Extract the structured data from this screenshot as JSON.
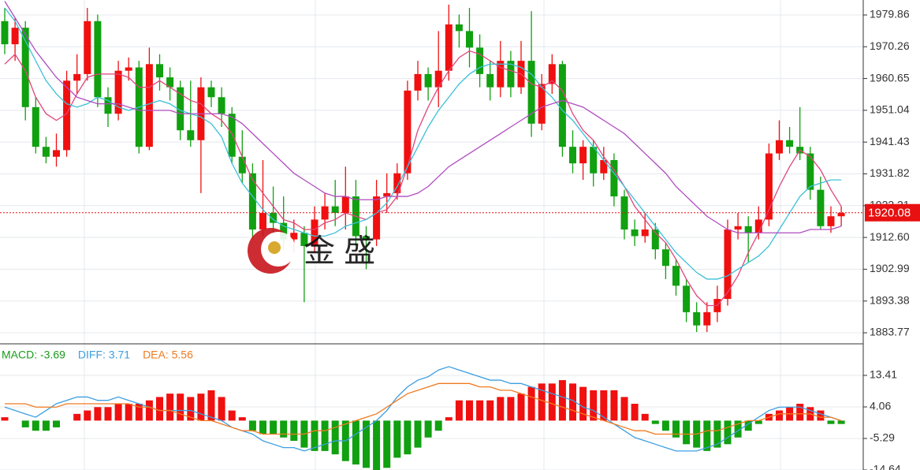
{
  "chart_data": [
    {
      "type": "candlestick",
      "up_color": "#f01010",
      "down_color": "#10a010",
      "candles": [
        [
          1978,
          1982,
          1968,
          1971
        ],
        [
          1971,
          1979,
          1966,
          1976
        ],
        [
          1976,
          1978,
          1948,
          1952
        ],
        [
          1952,
          1955,
          1938,
          1940
        ],
        [
          1940,
          1943,
          1935,
          1937
        ],
        [
          1937,
          1944,
          1934,
          1939
        ],
        [
          1939,
          1963,
          1937,
          1960
        ],
        [
          1960,
          1968,
          1956,
          1962
        ],
        [
          1962,
          1982,
          1960,
          1978
        ],
        [
          1978,
          1980,
          1952,
          1955
        ],
        [
          1955,
          1958,
          1946,
          1950
        ],
        [
          1950,
          1966,
          1948,
          1963
        ],
        [
          1963,
          1967,
          1960,
          1964
        ],
        [
          1964,
          1966,
          1938,
          1940
        ],
        [
          1940,
          1970,
          1939,
          1965
        ],
        [
          1965,
          1968,
          1957,
          1961
        ],
        [
          1961,
          1964,
          1954,
          1958
        ],
        [
          1958,
          1960,
          1942,
          1945
        ],
        [
          1945,
          1960,
          1940,
          1942
        ],
        [
          1942,
          1961,
          1926,
          1958
        ],
        [
          1958,
          1960,
          1952,
          1955
        ],
        [
          1955,
          1958,
          1946,
          1950
        ],
        [
          1950,
          1952,
          1935,
          1937
        ],
        [
          1937,
          1945,
          1929,
          1932
        ],
        [
          1932,
          1935,
          1912,
          1915
        ],
        [
          1915,
          1936,
          1913,
          1920
        ],
        [
          1920,
          1928,
          1914,
          1917
        ],
        [
          1917,
          1925,
          1909,
          1912
        ],
        [
          1912,
          1918,
          1908,
          1914
        ],
        [
          1914,
          1916,
          1893,
          1910
        ],
        [
          1910,
          1922,
          1908,
          1918
        ],
        [
          1918,
          1926,
          1915,
          1922
        ],
        [
          1922,
          1930,
          1916,
          1920
        ],
        [
          1920,
          1934,
          1915,
          1925
        ],
        [
          1925,
          1930,
          1910,
          1913
        ],
        [
          1913,
          1916,
          1903,
          1912
        ],
        [
          1912,
          1930,
          1910,
          1925
        ],
        [
          1925,
          1932,
          1920,
          1926
        ],
        [
          1926,
          1935,
          1924,
          1932
        ],
        [
          1932,
          1960,
          1930,
          1957
        ],
        [
          1957,
          1966,
          1954,
          1962
        ],
        [
          1962,
          1964,
          1954,
          1958
        ],
        [
          1958,
          1975,
          1952,
          1963
        ],
        [
          1963,
          1983,
          1960,
          1977
        ],
        [
          1977,
          1980,
          1970,
          1975
        ],
        [
          1975,
          1982,
          1964,
          1970
        ],
        [
          1970,
          1974,
          1958,
          1962
        ],
        [
          1962,
          1966,
          1954,
          1958
        ],
        [
          1958,
          1972,
          1955,
          1966
        ],
        [
          1966,
          1969,
          1955,
          1958
        ],
        [
          1958,
          1972,
          1956,
          1966
        ],
        [
          1966,
          1981,
          1943,
          1947
        ],
        [
          1947,
          1962,
          1945,
          1959
        ],
        [
          1959,
          1968,
          1956,
          1965
        ],
        [
          1965,
          1966,
          1937,
          1940
        ],
        [
          1940,
          1945,
          1932,
          1935
        ],
        [
          1935,
          1942,
          1930,
          1940
        ],
        [
          1940,
          1942,
          1928,
          1932
        ],
        [
          1932,
          1940,
          1930,
          1936
        ],
        [
          1936,
          1938,
          1922,
          1925
        ],
        [
          1925,
          1927,
          1912,
          1915
        ],
        [
          1915,
          1918,
          1910,
          1913
        ],
        [
          1913,
          1920,
          1911,
          1915
        ],
        [
          1915,
          1917,
          1906,
          1909
        ],
        [
          1909,
          1911,
          1900,
          1904
        ],
        [
          1904,
          1906,
          1895,
          1898
        ],
        [
          1898,
          1900,
          1887,
          1890
        ],
        [
          1890,
          1893,
          1884,
          1886
        ],
        [
          1886,
          1893,
          1884,
          1890
        ],
        [
          1890,
          1898,
          1887,
          1894
        ],
        [
          1894,
          1918,
          1892,
          1915
        ],
        [
          1915,
          1920,
          1912,
          1916
        ],
        [
          1916,
          1919,
          1905,
          1914
        ],
        [
          1914,
          1922,
          1912,
          1918
        ],
        [
          1918,
          1941,
          1916,
          1938
        ],
        [
          1938,
          1948,
          1936,
          1942
        ],
        [
          1942,
          1946,
          1938,
          1940
        ],
        [
          1940,
          1952,
          1936,
          1938
        ],
        [
          1938,
          1940,
          1924,
          1927
        ],
        [
          1927,
          1931,
          1915,
          1916
        ],
        [
          1916,
          1922,
          1914,
          1919
        ],
        [
          1919,
          1922,
          1916,
          1920
        ]
      ],
      "series": [
        {
          "color": "#e0457b",
          "values": [
            1965,
            1968,
            1963,
            1955,
            1950,
            1948,
            1950,
            1956,
            1961,
            1962,
            1962,
            1962,
            1961,
            1958,
            1958,
            1960,
            1958,
            1956,
            1954,
            1953,
            1950,
            1948,
            1944,
            1937,
            1930,
            1926,
            1922,
            1918,
            1917,
            1915,
            1915,
            1917,
            1918,
            1920,
            1919,
            1918,
            1920,
            1921,
            1925,
            1934,
            1945,
            1952,
            1958,
            1963,
            1967,
            1969,
            1968,
            1966,
            1964,
            1963,
            1962,
            1959,
            1958,
            1960,
            1957,
            1950,
            1945,
            1942,
            1937,
            1933,
            1928,
            1922,
            1918,
            1914,
            1911,
            1906,
            1900,
            1895,
            1892,
            1892,
            1896,
            1901,
            1908,
            1914,
            1921,
            1928,
            1934,
            1939,
            1937,
            1933,
            1927,
            1922
          ]
        },
        {
          "color": "#3cc0d8",
          "values": [
            1982,
            1978,
            1972,
            1966,
            1960,
            1956,
            1953,
            1952,
            1953,
            1955,
            1954,
            1952,
            1951,
            1952,
            1953,
            1954,
            1953,
            1951,
            1950,
            1949,
            1947,
            1943,
            1935,
            1929,
            1925,
            1921,
            1918,
            1916,
            1915,
            1914,
            1913,
            1913,
            1914,
            1916,
            1917,
            1918,
            1920,
            1923,
            1928,
            1934,
            1940,
            1946,
            1951,
            1955,
            1959,
            1962,
            1964,
            1965,
            1965,
            1965,
            1964,
            1962,
            1958,
            1955,
            1951,
            1948,
            1944,
            1940,
            1936,
            1932,
            1928,
            1924,
            1920,
            1916,
            1912,
            1908,
            1905,
            1902,
            1900,
            1900,
            1901,
            1903,
            1905,
            1907,
            1910,
            1915,
            1920,
            1925,
            1928,
            1929,
            1930,
            1930
          ]
        },
        {
          "color": "#b04cc0",
          "values": [
            1984,
            1979,
            1974,
            1969,
            1965,
            1961,
            1958,
            1955,
            1954,
            1953,
            1953,
            1953,
            1952,
            1951,
            1951,
            1951,
            1951,
            1950,
            1950,
            1950,
            1950,
            1950,
            1949,
            1947,
            1944,
            1941,
            1938,
            1935,
            1932,
            1930,
            1928,
            1926,
            1925,
            1925,
            1924,
            1924,
            1924,
            1925,
            1925,
            1925,
            1926,
            1928,
            1931,
            1934,
            1936,
            1938,
            1940,
            1942,
            1944,
            1946,
            1948,
            1950,
            1952,
            1953,
            1954,
            1953,
            1952,
            1950,
            1948,
            1946,
            1944,
            1941,
            1938,
            1935,
            1932,
            1928,
            1925,
            1922,
            1919,
            1917,
            1915,
            1914,
            1914,
            1914,
            1914,
            1914,
            1914,
            1914,
            1915,
            1915,
            1915,
            1916
          ]
        }
      ],
      "ylim": [
        1880.67,
        1984.39
      ],
      "yticks": [
        1979.86,
        1970.26,
        1960.65,
        1951.04,
        1941.43,
        1931.82,
        1922.21,
        {
          "value": 1912.6,
          "label": "1912.60"
        },
        1902.99,
        1893.38,
        1883.77
      ],
      "current_price": 1920.08,
      "current_color": "#e81010",
      "watermark": "金 盛",
      "grid": true
    },
    {
      "type": "macd",
      "legend": [
        {
          "text": "MACD: -3.69",
          "color": "#1a9a1a"
        },
        {
          "text": "DIFF: 3.71",
          "color": "#3c9ee0"
        },
        {
          "text": "DEA: 5.56",
          "color": "#f07a20"
        }
      ],
      "up_color": "#f01010",
      "down_color": "#10a010",
      "histogram": [
        1,
        0,
        -2,
        -3,
        -3,
        -2,
        0,
        2,
        3,
        4,
        4,
        5,
        5,
        5,
        6,
        7,
        8,
        8,
        7,
        8,
        9,
        7,
        3,
        1,
        -3,
        -4,
        -4,
        -5,
        -6,
        -8,
        -9,
        -9,
        -10,
        -12,
        -13,
        -14,
        -15,
        -14,
        -11,
        -10,
        -8,
        -5,
        -3,
        1,
        6,
        6,
        6,
        6,
        7,
        7,
        8,
        10,
        11,
        11,
        12,
        11,
        10,
        9,
        9,
        9,
        7,
        5,
        2,
        -1,
        -3,
        -5,
        -7,
        -8,
        -9,
        -8,
        -7,
        -5,
        -3,
        -1,
        2,
        3,
        4,
        5,
        4,
        3,
        -1,
        -1
      ],
      "series": [
        {
          "color": "#3c9ee0",
          "values": [
            4,
            3,
            2,
            1,
            3,
            5,
            6,
            7,
            7,
            6,
            6,
            7,
            6,
            5,
            4,
            3,
            3,
            3,
            3,
            2,
            1,
            0,
            -2,
            -3,
            -4,
            -6,
            -7,
            -8,
            -8,
            -9,
            -8,
            -7,
            -6,
            -6,
            -4,
            -2,
            0,
            3,
            7,
            10,
            12,
            13,
            15,
            16,
            15,
            14,
            13,
            12,
            12,
            11,
            11,
            10,
            9,
            8,
            7,
            6,
            4,
            3,
            1,
            -1,
            -3,
            -5,
            -6,
            -7,
            -8,
            -9,
            -9,
            -9,
            -8,
            -7,
            -5,
            -3,
            -1,
            1,
            3,
            4,
            4,
            4,
            3,
            2,
            1,
            0
          ]
        },
        {
          "color": "#f07a20",
          "values": [
            5,
            5,
            5,
            4,
            4,
            4,
            5,
            5,
            5,
            5,
            5,
            5,
            5,
            4,
            4,
            3,
            3,
            2,
            1,
            0,
            0,
            -1,
            -2,
            -3,
            -3,
            -4,
            -4,
            -4,
            -4,
            -4,
            -3,
            -3,
            -2,
            -1,
            0,
            1,
            2,
            4,
            6,
            8,
            9,
            10,
            11,
            11,
            11,
            11,
            10,
            10,
            9,
            9,
            8,
            7,
            6,
            5,
            4,
            3,
            2,
            1,
            0,
            -1,
            -2,
            -3,
            -3,
            -4,
            -4,
            -4,
            -4,
            -4,
            -3,
            -3,
            -2,
            -1,
            0,
            0,
            1,
            2,
            2,
            2,
            2,
            1,
            1,
            0
          ]
        }
      ],
      "ylim": [
        -14.64,
        22.53
      ],
      "yticks": [
        13.41,
        4.06,
        -5.29,
        -14.64
      ],
      "grid": true
    }
  ]
}
